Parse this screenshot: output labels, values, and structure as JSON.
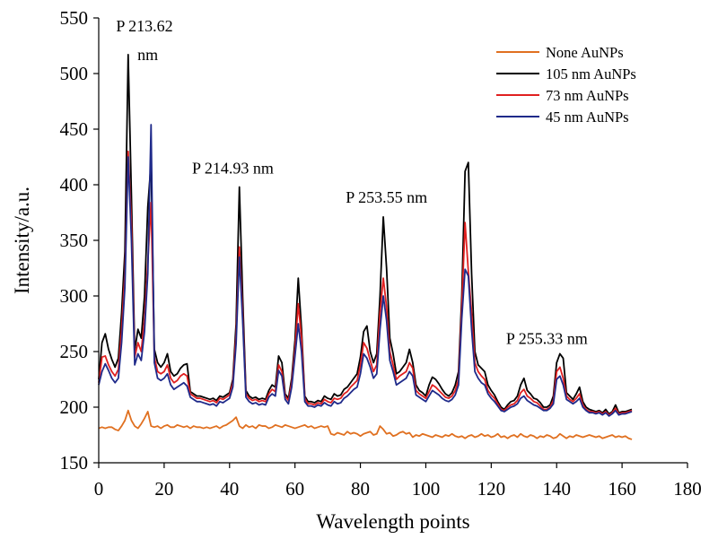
{
  "chart_data": {
    "type": "line",
    "title": "",
    "xlabel": "Wavelength points",
    "ylabel": "Intensity/a.u.",
    "xlim": [
      0,
      180
    ],
    "ylim": [
      150,
      550
    ],
    "xticks": [
      0,
      20,
      40,
      60,
      80,
      100,
      120,
      140,
      160,
      180
    ],
    "yticks": [
      150,
      200,
      250,
      300,
      350,
      400,
      450,
      500,
      550
    ],
    "grid": false,
    "legend": "top-right",
    "x": [
      0,
      1,
      2,
      3,
      4,
      5,
      6,
      7,
      8,
      9,
      10,
      11,
      12,
      13,
      14,
      15,
      16,
      17,
      18,
      19,
      20,
      21,
      22,
      23,
      24,
      25,
      26,
      27,
      28,
      29,
      30,
      31,
      32,
      33,
      34,
      35,
      36,
      37,
      38,
      39,
      40,
      41,
      42,
      43,
      44,
      45,
      46,
      47,
      48,
      49,
      50,
      51,
      52,
      53,
      54,
      55,
      56,
      57,
      58,
      59,
      60,
      61,
      62,
      63,
      64,
      65,
      66,
      67,
      68,
      69,
      70,
      71,
      72,
      73,
      74,
      75,
      76,
      77,
      78,
      79,
      80,
      81,
      82,
      83,
      84,
      85,
      86,
      87,
      88,
      89,
      90,
      91,
      92,
      93,
      94,
      95,
      96,
      97,
      98,
      99,
      100,
      101,
      102,
      103,
      104,
      105,
      106,
      107,
      108,
      109,
      110,
      111,
      112,
      113,
      114,
      115,
      116,
      117,
      118,
      119,
      120,
      121,
      122,
      123,
      124,
      125,
      126,
      127,
      128,
      129,
      130,
      131,
      132,
      133,
      134,
      135,
      136,
      137,
      138,
      139,
      140,
      141,
      142,
      143,
      144,
      145,
      146,
      147,
      148,
      149,
      150,
      151,
      152,
      153,
      154,
      155,
      156,
      157,
      158,
      159,
      160,
      161,
      162,
      163
    ],
    "series": [
      {
        "name": "None AuNPs",
        "color": "#e07020",
        "values": [
          181,
          182,
          181,
          182,
          182,
          180,
          179,
          183,
          188,
          197,
          188,
          183,
          181,
          185,
          190,
          196,
          183,
          182,
          183,
          181,
          183,
          184,
          182,
          182,
          184,
          183,
          182,
          183,
          181,
          183,
          182,
          182,
          181,
          182,
          181,
          182,
          183,
          181,
          183,
          184,
          186,
          188,
          191,
          183,
          181,
          184,
          182,
          183,
          181,
          184,
          183,
          183,
          181,
          182,
          184,
          183,
          182,
          184,
          183,
          182,
          181,
          182,
          183,
          184,
          182,
          183,
          181,
          182,
          183,
          182,
          183,
          176,
          175,
          177,
          176,
          175,
          178,
          176,
          177,
          176,
          174,
          176,
          177,
          178,
          175,
          176,
          183,
          180,
          176,
          177,
          174,
          175,
          177,
          178,
          176,
          177,
          173,
          175,
          174,
          176,
          175,
          174,
          173,
          175,
          174,
          173,
          175,
          174,
          176,
          174,
          173,
          174,
          172,
          174,
          175,
          173,
          174,
          176,
          174,
          175,
          173,
          174,
          176,
          173,
          174,
          172,
          174,
          175,
          173,
          176,
          174,
          173,
          175,
          174,
          172,
          174,
          173,
          175,
          174,
          172,
          173,
          176,
          174,
          172,
          174,
          173,
          175,
          174,
          173,
          174,
          175,
          174,
          173,
          174,
          172,
          173,
          174,
          175,
          173,
          174,
          173,
          174,
          172,
          171
        ]
      },
      {
        "name": "105 nm AuNPs",
        "color": "#000000",
        "values": [
          225,
          258,
          266,
          252,
          243,
          236,
          244,
          285,
          340,
          517,
          390,
          251,
          270,
          262,
          300,
          380,
          420,
          252,
          240,
          236,
          240,
          248,
          232,
          228,
          230,
          235,
          238,
          239,
          214,
          212,
          210,
          210,
          209,
          208,
          207,
          208,
          206,
          210,
          209,
          211,
          213,
          225,
          275,
          398,
          300,
          215,
          210,
          208,
          209,
          207,
          208,
          207,
          215,
          220,
          218,
          246,
          240,
          212,
          208,
          226,
          260,
          316,
          270,
          210,
          205,
          205,
          204,
          206,
          205,
          210,
          208,
          207,
          212,
          210,
          211,
          216,
          218,
          222,
          226,
          230,
          245,
          268,
          273,
          250,
          240,
          248,
          300,
          371,
          325,
          262,
          248,
          230,
          232,
          236,
          240,
          252,
          240,
          220,
          215,
          213,
          210,
          220,
          227,
          225,
          221,
          216,
          212,
          210,
          213,
          220,
          232,
          300,
          412,
          420,
          320,
          250,
          238,
          235,
          232,
          220,
          215,
          211,
          205,
          200,
          198,
          202,
          205,
          206,
          210,
          220,
          226,
          215,
          212,
          208,
          207,
          204,
          200,
          200,
          202,
          210,
          240,
          248,
          244,
          213,
          210,
          207,
          212,
          218,
          205,
          200,
          198,
          197,
          196,
          197,
          195,
          198,
          194,
          196,
          202,
          195,
          196,
          196,
          197,
          198
        ]
      },
      {
        "name": "73 nm AuNPs",
        "color": "#e02020",
        "values": [
          222,
          245,
          246,
          238,
          232,
          228,
          234,
          270,
          320,
          430,
          365,
          245,
          258,
          250,
          280,
          330,
          384,
          245,
          232,
          230,
          232,
          238,
          226,
          222,
          224,
          228,
          230,
          228,
          212,
          210,
          208,
          208,
          207,
          206,
          205,
          206,
          204,
          208,
          207,
          209,
          211,
          222,
          265,
          344,
          285,
          212,
          208,
          206,
          207,
          205,
          206,
          205,
          212,
          216,
          214,
          238,
          232,
          210,
          206,
          222,
          252,
          293,
          262,
          208,
          203,
          203,
          202,
          204,
          203,
          207,
          205,
          204,
          208,
          207,
          208,
          212,
          214,
          218,
          221,
          224,
          238,
          258,
          253,
          242,
          232,
          238,
          285,
          316,
          290,
          250,
          238,
          225,
          228,
          230,
          232,
          240,
          235,
          215,
          212,
          210,
          208,
          214,
          220,
          218,
          215,
          212,
          209,
          208,
          210,
          215,
          225,
          290,
          366,
          322,
          285,
          240,
          232,
          228,
          225,
          215,
          211,
          208,
          203,
          198,
          197,
          200,
          202,
          203,
          206,
          213,
          216,
          210,
          208,
          205,
          204,
          201,
          198,
          198,
          200,
          206,
          232,
          236,
          226,
          210,
          207,
          205,
          208,
          212,
          202,
          198,
          196,
          196,
          195,
          196,
          194,
          196,
          193,
          195,
          199,
          194,
          195,
          195,
          196,
          197
        ]
      },
      {
        "name": "45 nm AuNPs",
        "color": "#1f2a8a",
        "values": [
          220,
          232,
          239,
          233,
          226,
          222,
          226,
          258,
          308,
          425,
          350,
          238,
          248,
          242,
          268,
          320,
          454,
          240,
          226,
          224,
          226,
          230,
          220,
          216,
          218,
          220,
          222,
          219,
          209,
          207,
          205,
          205,
          204,
          203,
          202,
          203,
          201,
          205,
          204,
          206,
          208,
          218,
          257,
          335,
          278,
          209,
          205,
          203,
          204,
          202,
          203,
          202,
          209,
          212,
          210,
          233,
          228,
          207,
          203,
          218,
          246,
          275,
          250,
          205,
          201,
          201,
          200,
          202,
          201,
          204,
          202,
          201,
          205,
          203,
          204,
          208,
          210,
          213,
          216,
          218,
          230,
          248,
          244,
          236,
          226,
          230,
          270,
          300,
          278,
          242,
          232,
          220,
          222,
          224,
          226,
          232,
          228,
          211,
          209,
          207,
          205,
          210,
          215,
          213,
          211,
          208,
          206,
          205,
          207,
          211,
          220,
          280,
          324,
          318,
          270,
          232,
          226,
          222,
          220,
          212,
          208,
          205,
          201,
          197,
          196,
          198,
          200,
          201,
          203,
          208,
          210,
          206,
          204,
          202,
          201,
          199,
          197,
          197,
          199,
          203,
          225,
          228,
          220,
          207,
          205,
          203,
          205,
          208,
          200,
          197,
          195,
          195,
          194,
          195,
          193,
          195,
          192,
          194,
          197,
          193,
          194,
          194,
          195,
          196
        ]
      }
    ],
    "annotations": [
      {
        "text": "P 213.62",
        "x": 14,
        "y": 538
      },
      {
        "text": "nm",
        "x": 15,
        "y": 512
      },
      {
        "text": "P 214.93 nm",
        "x": 41,
        "y": 410
      },
      {
        "text": "P 253.55 nm",
        "x": 88,
        "y": 384
      },
      {
        "text": "P 255.33 nm",
        "x": 137,
        "y": 257
      }
    ]
  }
}
